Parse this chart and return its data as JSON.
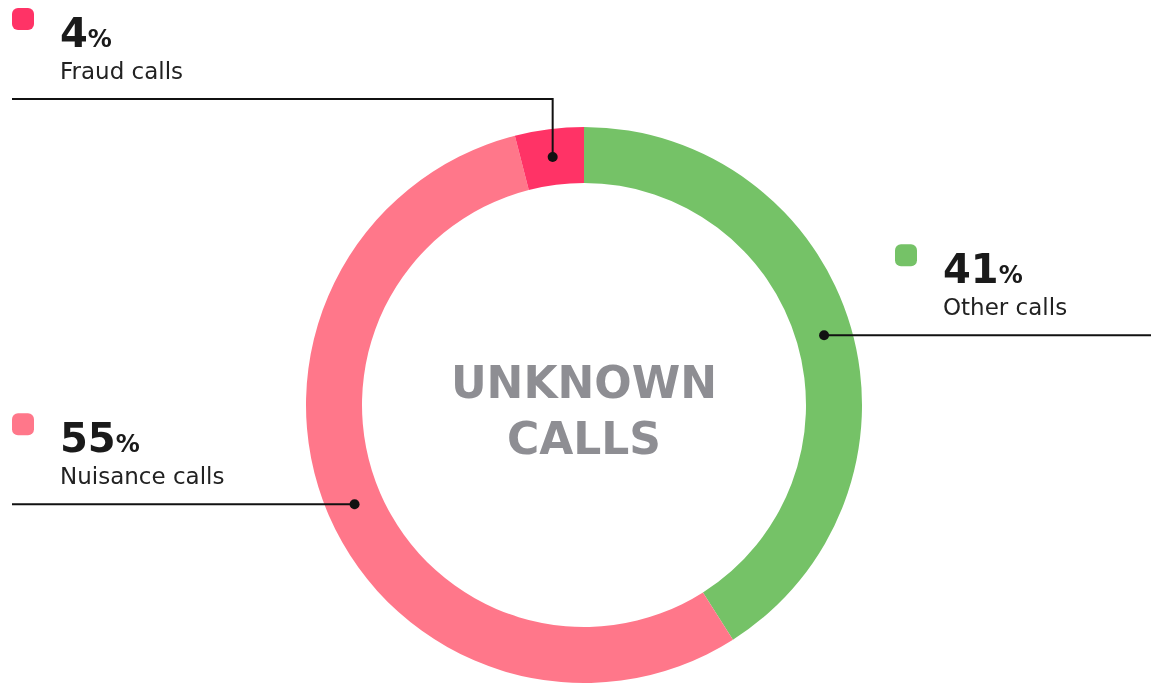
{
  "chart_data": {
    "type": "donut",
    "title": "UNKNOWN CALLS",
    "categories": [
      "Other calls",
      "Nuisance calls",
      "Fraud calls"
    ],
    "values": [
      41,
      55,
      4
    ],
    "colors": [
      "#75c267",
      "#ff778a",
      "#ff3366"
    ],
    "value_labels": [
      "41%",
      "55%",
      "4%"
    ]
  }
}
